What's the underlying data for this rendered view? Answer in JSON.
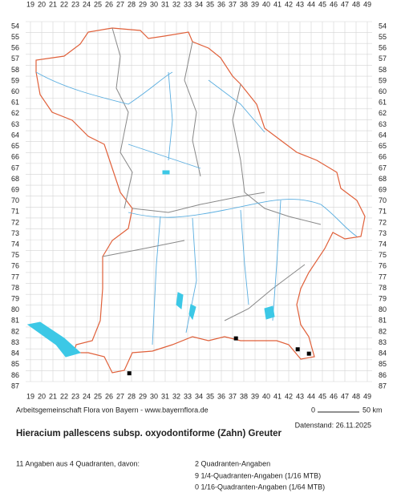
{
  "header": {
    "credit": "Arbeitsgemeinschaft Flora von Bayern - www.bayernflora.de",
    "scale_start": "0",
    "scale_end": "50 km",
    "date": "Datenstand: 26.11.2025",
    "title": "Hieracium pallescens subsp. oxyodontiforme (Zahn) Greuter"
  },
  "summary": {
    "total": "11 Angaben aus 4 Quadranten, davon:",
    "lines": [
      "2 Quadranten-Angaben",
      "9 1/4-Quadranten-Angaben (1/16 MTB)",
      "0 1/16-Quadranten-Angaben (1/64 MTB)"
    ]
  },
  "grid": {
    "columns": [
      19,
      20,
      21,
      22,
      23,
      24,
      25,
      26,
      27,
      28,
      29,
      30,
      31,
      32,
      33,
      34,
      35,
      36,
      37,
      38,
      39,
      40,
      41,
      42,
      43,
      44,
      45,
      46,
      47,
      48,
      49
    ],
    "rows": [
      54,
      55,
      56,
      57,
      58,
      59,
      60,
      61,
      62,
      63,
      64,
      65,
      66,
      67,
      68,
      69,
      70,
      71,
      72,
      73,
      74,
      75,
      76,
      77,
      78,
      79,
      80,
      81,
      82,
      83,
      84,
      85,
      86,
      87
    ]
  },
  "points": [
    {
      "x": 27.8,
      "y": 85.8
    },
    {
      "x": 37.3,
      "y": 82.6
    },
    {
      "x": 42.8,
      "y": 83.6
    },
    {
      "x": 43.8,
      "y": 84.0
    }
  ]
}
